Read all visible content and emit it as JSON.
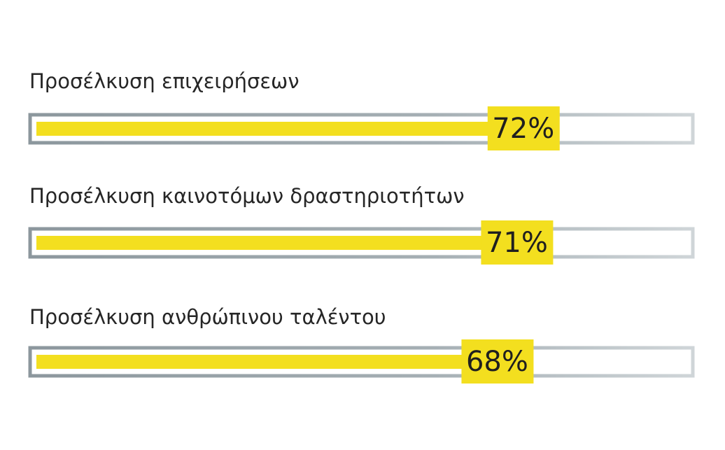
{
  "chart_data": {
    "type": "bar",
    "orientation": "horizontal",
    "categories": [
      "Προσέλκυση επιχειρήσεων",
      "Προσέλκυση καινοτόμων δραστηριοτήτων",
      "Προσέλκυση ανθρώπινου ταλέντου"
    ],
    "values": [
      72,
      71,
      68
    ],
    "value_labels": [
      "72%",
      "71%",
      "68%"
    ],
    "xlim": [
      0,
      100
    ],
    "color": "#f3df1f"
  }
}
